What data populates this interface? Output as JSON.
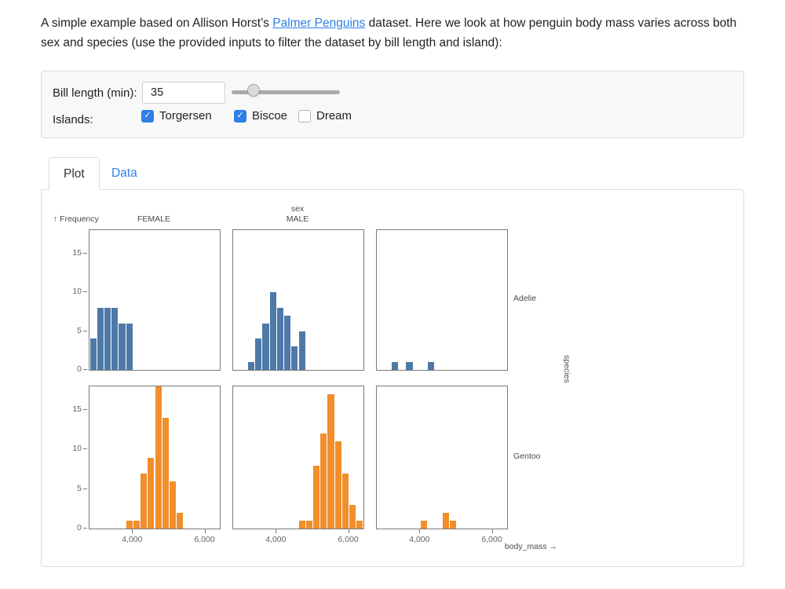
{
  "intro": {
    "before_link": "A simple example based on Allison Horst’s ",
    "link_text": "Palmer Penguins",
    "after_link": " dataset. Here we look at how penguin body mass varies across both sex and species (use the provided inputs to filter the dataset by bill length and island):"
  },
  "filters": {
    "bill_length_label": "Bill length (min):",
    "bill_length_value": "35",
    "slider_percent": 20,
    "islands_label": "Islands:",
    "islands": [
      {
        "label": "Torgersen",
        "checked": true
      },
      {
        "label": "Biscoe",
        "checked": true
      },
      {
        "label": "Dream",
        "checked": false
      }
    ]
  },
  "tabs": [
    {
      "label": "Plot",
      "active": true
    },
    {
      "label": "Data",
      "active": false
    }
  ],
  "colors": {
    "accent_blue": "#2e7fe8",
    "bar_blue": "#4e79a7",
    "bar_orange": "#f28e2b"
  },
  "chart_data": {
    "type": "bar",
    "variant": "faceted_histogram",
    "x_axis_label": "body_mass →",
    "y_axis_label": "↑ Frequency",
    "facet_col_label": "sex",
    "facet_row_label": "species",
    "col_facets": [
      "FEMALE",
      "MALE",
      ""
    ],
    "row_facets": [
      "Adelie",
      "Gentoo"
    ],
    "x_domain": [
      2800,
      6400
    ],
    "y_domain": [
      0,
      18
    ],
    "bin_width": 200,
    "x_ticks": [
      4000,
      6000
    ],
    "x_tick_labels": [
      "4,000",
      "6,000"
    ],
    "y_ticks": [
      0,
      5,
      10,
      15
    ],
    "grid": false,
    "colors": {
      "Adelie": "#4e79a7",
      "Gentoo": "#f28e2b"
    },
    "facets": [
      {
        "row": "Adelie",
        "col": "FEMALE",
        "bins": [
          [
            2800,
            4
          ],
          [
            3000,
            8
          ],
          [
            3200,
            8
          ],
          [
            3400,
            8
          ],
          [
            3600,
            6
          ],
          [
            3800,
            6
          ]
        ]
      },
      {
        "row": "Adelie",
        "col": "MALE",
        "bins": [
          [
            3200,
            1
          ],
          [
            3400,
            4
          ],
          [
            3600,
            6
          ],
          [
            3800,
            10
          ],
          [
            4000,
            8
          ],
          [
            4200,
            7
          ],
          [
            4400,
            3
          ],
          [
            4600,
            5
          ]
        ]
      },
      {
        "row": "Adelie",
        "col": "",
        "bins": [
          [
            3200,
            1
          ],
          [
            3600,
            1
          ],
          [
            4200,
            1
          ]
        ]
      },
      {
        "row": "Gentoo",
        "col": "FEMALE",
        "bins": [
          [
            3800,
            1
          ],
          [
            4000,
            1
          ],
          [
            4200,
            7
          ],
          [
            4400,
            9
          ],
          [
            4600,
            18
          ],
          [
            4800,
            14
          ],
          [
            5000,
            6
          ],
          [
            5200,
            2
          ]
        ]
      },
      {
        "row": "Gentoo",
        "col": "MALE",
        "bins": [
          [
            4600,
            1
          ],
          [
            4800,
            1
          ],
          [
            5000,
            8
          ],
          [
            5200,
            12
          ],
          [
            5400,
            17
          ],
          [
            5600,
            11
          ],
          [
            5800,
            7
          ],
          [
            6000,
            3
          ],
          [
            6200,
            1
          ]
        ]
      },
      {
        "row": "Gentoo",
        "col": "",
        "bins": [
          [
            4000,
            1
          ],
          [
            4600,
            2
          ],
          [
            4800,
            1
          ]
        ]
      }
    ]
  }
}
